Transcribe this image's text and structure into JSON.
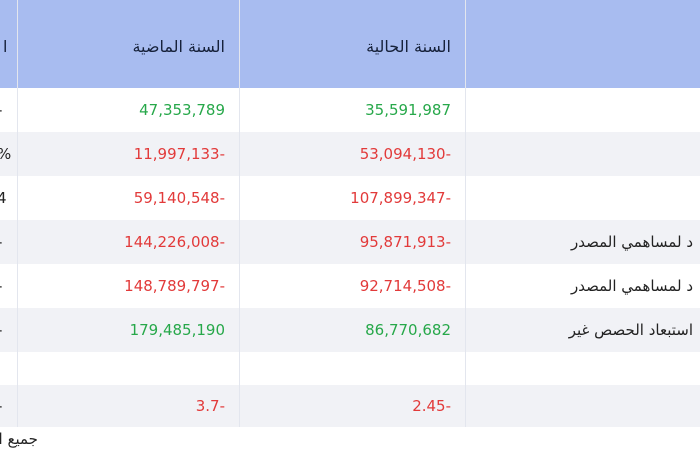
{
  "header": {
    "col_edge": "l",
    "col_previous_year": "السنة الماضية",
    "col_current_year": "السنة الحالية",
    "col_item": ""
  },
  "rows": [
    {
      "edge": "-",
      "previous": "47,353,789",
      "current": "35,591,987",
      "label": "",
      "previous_sign": "positive",
      "current_sign": "positive"
    },
    {
      "edge": "%",
      "previous": "11,997,133-",
      "current": "53,094,130-",
      "label": "",
      "previous_sign": "negative",
      "current_sign": "negative"
    },
    {
      "edge": "4",
      "previous": "59,140,548-",
      "current": "107,899,347-",
      "label": "",
      "previous_sign": "negative",
      "current_sign": "negative"
    },
    {
      "edge": "-",
      "previous": "144,226,008-",
      "current": "95,871,913-",
      "label": "د لمساهمي المصدر",
      "previous_sign": "negative",
      "current_sign": "negative"
    },
    {
      "edge": "-",
      "previous": "148,789,797-",
      "current": "92,714,508-",
      "label": "د لمساهمي المصدر",
      "previous_sign": "negative",
      "current_sign": "negative"
    },
    {
      "edge": "-",
      "previous": "179,485,190",
      "current": "86,770,682",
      "label": "استبعاد الحصص غير",
      "previous_sign": "positive",
      "current_sign": "positive"
    },
    {
      "edge": "",
      "previous": "",
      "current": "",
      "label": ""
    },
    {
      "edge": "-",
      "previous": "3.7-",
      "current": "2.45-",
      "label": "",
      "previous_sign": "negative",
      "current_sign": "negative"
    }
  ],
  "footer_text": "جميع الأ",
  "colors": {
    "header_bg": "#a8bcf0",
    "positive": "#27a84a",
    "negative": "#e23a3a",
    "row_shade": "#f1f2f6"
  }
}
